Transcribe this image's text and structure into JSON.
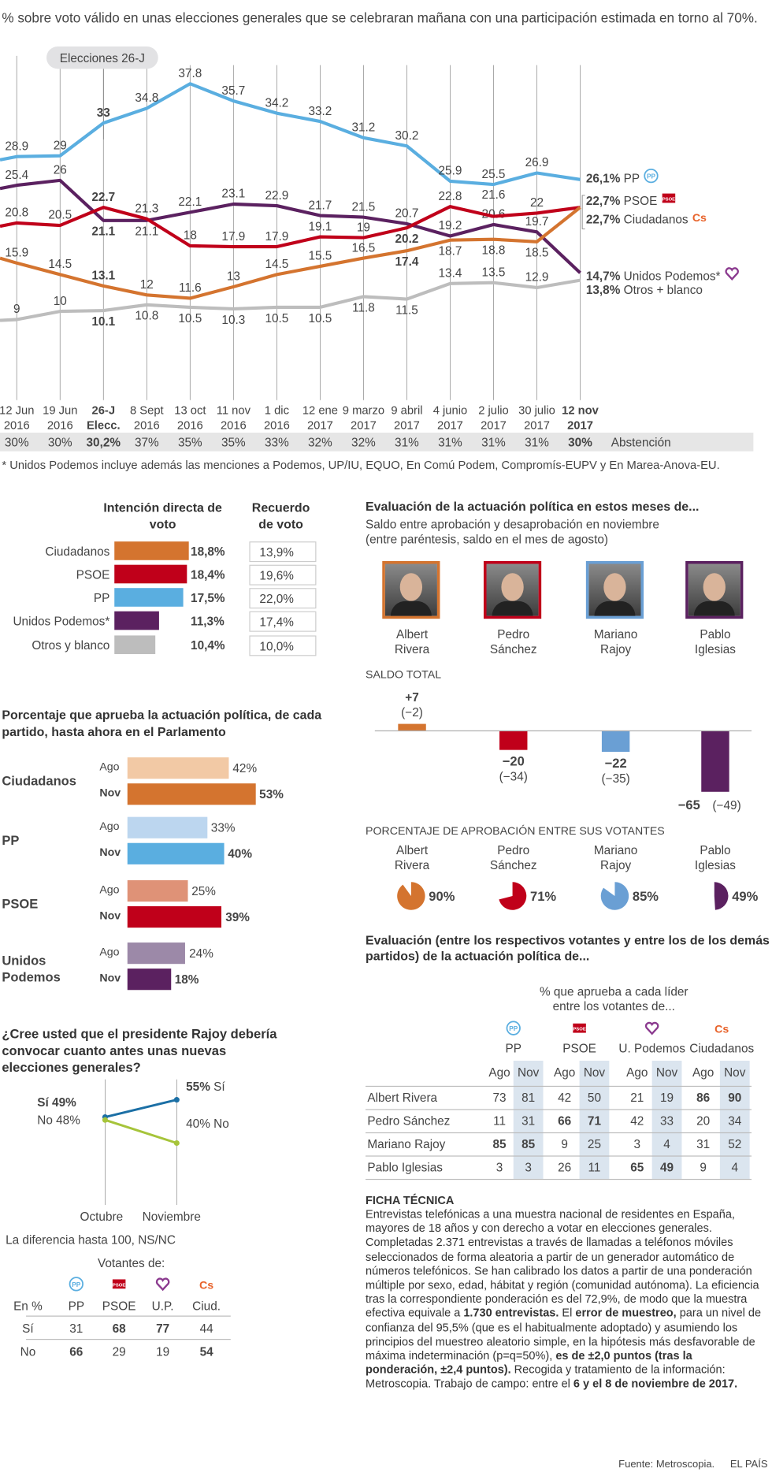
{
  "header": {
    "subtitle": "% sobre voto válido en unas elecciones generales que se celebraran mañana con una participación estimada en torno al 70%."
  },
  "chart_data": [
    {
      "type": "line",
      "annotation": "Elecciones 26-J",
      "categories": [
        [
          "12 Jun",
          "2016"
        ],
        [
          "19 Jun",
          "2016"
        ],
        [
          "26-J",
          "Elecc."
        ],
        [
          "8 Sept",
          "2016"
        ],
        [
          "13 oct",
          "2016"
        ],
        [
          "11 nov",
          "2016"
        ],
        [
          "1 dic",
          "2016"
        ],
        [
          "12 ene",
          "2017"
        ],
        [
          "9 marzo",
          "2017"
        ],
        [
          "9 abril",
          "2017"
        ],
        [
          "4 junio",
          "2017"
        ],
        [
          "2 julio",
          "2017"
        ],
        [
          "30 julio",
          "2017"
        ],
        [
          "12 nov",
          "2017"
        ]
      ],
      "series": [
        {
          "name": "PP",
          "end_label": "26,1%",
          "color": "#5aaee0",
          "icon": "pp-logo-icon",
          "values": [
            28.9,
            29.0,
            33.0,
            34.8,
            37.8,
            35.7,
            34.2,
            33.2,
            31.2,
            30.2,
            25.9,
            25.5,
            26.9,
            26.1
          ]
        },
        {
          "name": "Unidos Podemos*",
          "end_label": "14,7%",
          "color": "#5b2160",
          "icon": "podemos-heart-icon",
          "values": [
            25.4,
            26.0,
            21.1,
            21.1,
            22.1,
            23.1,
            22.9,
            21.7,
            21.5,
            20.7,
            19.2,
            20.6,
            19.7,
            14.7
          ]
        },
        {
          "name": "PSOE",
          "end_label": "22,7%",
          "color": "#c0001a",
          "icon": "psoe-logo-icon",
          "values": [
            20.8,
            20.5,
            22.7,
            21.3,
            18.0,
            17.9,
            17.9,
            19.1,
            19.0,
            20.2,
            22.8,
            21.6,
            22.0,
            22.7
          ]
        },
        {
          "name": "Ciudadanos",
          "end_label": "22,7%",
          "color": "#d4742f",
          "icon": "cs-logo-icon",
          "values": [
            15.9,
            14.5,
            13.1,
            12.0,
            11.6,
            13,
            14.5,
            15.5,
            16.5,
            17.4,
            18.7,
            18.8,
            18.5,
            22.7
          ]
        },
        {
          "name": "Otros + blanco",
          "end_label": "13,8%",
          "color": "#bdbdbd",
          "values": [
            9.0,
            10.0,
            10.1,
            10.8,
            10.5,
            10.3,
            10.5,
            10.5,
            11.8,
            11.5,
            13.4,
            13.5,
            12.9,
            13.8
          ]
        }
      ],
      "abstention_label": "Abstención",
      "abstention": [
        "30%",
        "30%",
        "30,2%",
        "37%",
        "35%",
        "35%",
        "33%",
        "32%",
        "32%",
        "31%",
        "31%",
        "31%",
        "31%",
        "30%"
      ],
      "footnote": "* Unidos Podemos incluye además las menciones a Podemos, UP/IU, EQUO, En Comú Podem, Compromís-EUPV y En Marea-Anova-EU."
    }
  ],
  "intencion": {
    "header_direct": "Intención directa de voto",
    "header_recall": "Recuerdo de voto",
    "rows": [
      {
        "party": "Ciudadanos",
        "value": 18.8,
        "label": "18,8%",
        "recall": "13,9%",
        "color": "#d4742f"
      },
      {
        "party": "PSOE",
        "value": 18.4,
        "label": "18,4%",
        "recall": "19,6%",
        "color": "#c0001a"
      },
      {
        "party": "PP",
        "value": 17.5,
        "label": "17,5%",
        "recall": "22,0%",
        "color": "#5aaee0"
      },
      {
        "party": "Unidos Podemos*",
        "value": 11.3,
        "label": "11,3%",
        "recall": "17,4%",
        "color": "#5b2160"
      },
      {
        "party": "Otros y blanco",
        "value": 10.4,
        "label": "10,4%",
        "recall": "10,0%",
        "color": "#bdbdbd"
      }
    ]
  },
  "aprueba": {
    "title": "Porcentaje que aprueba la actuación política, de cada partido, hasta ahora en el Parlamento",
    "ago": "Ago",
    "nov": "Nov",
    "parties": [
      {
        "name": "Ciudadanos",
        "ago": 42,
        "nov": 53,
        "ago_label": "42%",
        "nov_label": "53%",
        "c1": "#f2c9a5",
        "c2": "#d4742f"
      },
      {
        "name": "PP",
        "ago": 33,
        "nov": 40,
        "ago_label": "33%",
        "nov_label": "40%",
        "c1": "#bcd6ef",
        "c2": "#5aaee0"
      },
      {
        "name": "PSOE",
        "ago": 25,
        "nov": 39,
        "ago_label": "25%",
        "nov_label": "39%",
        "c1": "#df9277",
        "c2": "#c0001a"
      },
      {
        "name": "Unidos Podemos",
        "ago": 24,
        "nov": 18,
        "ago_label": "24%",
        "nov_label": "18%",
        "c1": "#9c89a8",
        "c2": "#5b2160"
      }
    ]
  },
  "rajoy": {
    "title": "¿Cree usted que el presidente Rajoy debería convocar cuanto antes unas nuevas elecciones generales?",
    "si_label": "Sí",
    "no_label": "No",
    "si_oct": "49%",
    "no_oct": "48%",
    "si_nov": "55%",
    "no_nov": "40%",
    "si_values": [
      49,
      55
    ],
    "no_values": [
      48,
      40
    ],
    "oct": "Octubre",
    "nov": "Noviembre",
    "note": "La diferencia hasta 100, NS/NC",
    "votantes": "Votantes de:",
    "cols": [
      "En %",
      "PP",
      "PSOE",
      "U.P.",
      "Ciud."
    ],
    "rows": [
      [
        "Sí",
        "31",
        "68",
        "77",
        "44"
      ],
      [
        "No",
        "66",
        "29",
        "19",
        "54"
      ]
    ]
  },
  "evaluacion": {
    "title": "Evaluación de la actuación política en estos meses de...",
    "sub1": "Saldo entre aprobación y desaprobación en noviembre",
    "sub2": "(entre paréntesis, saldo en el mes de agosto)",
    "saldo_title": "SALDO TOTAL",
    "aprob_title": "PORCENTAJE DE APROBACIÓN ENTRE SUS VOTANTES",
    "leaders": [
      {
        "first": "Albert",
        "last": "Rivera",
        "color": "#d4742f",
        "saldo": 7,
        "saldo_label": "+7",
        "prev": "(−2)",
        "aprob": 90,
        "aprob_label": "90%"
      },
      {
        "first": "Pedro",
        "last": "Sánchez",
        "color": "#c0001a",
        "saldo": -20,
        "saldo_label": "−20",
        "prev": "(−34)",
        "aprob": 71,
        "aprob_label": "71%"
      },
      {
        "first": "Mariano",
        "last": "Rajoy",
        "color": "#6a9fd4",
        "saldo": -22,
        "saldo_label": "−22",
        "prev": "(−35)",
        "aprob": 85,
        "aprob_label": "85%"
      },
      {
        "first": "Pablo",
        "last": "Iglesias",
        "color": "#5b2160",
        "saldo": -65,
        "saldo_label": "−65",
        "prev": "(−49)",
        "aprob": 49,
        "aprob_label": "49%"
      }
    ]
  },
  "cruzada": {
    "title": "Evaluación (entre los respectivos votantes y entre los de los demás partidos) de la actuación política de...",
    "sub1": "% que aprueba a cada líder",
    "sub2": "entre los votantes de...",
    "parties": [
      "PP",
      "PSOE",
      "U. Podemos",
      "Ciudadanos"
    ],
    "ago": "Ago",
    "nov": "Nov",
    "rows": [
      {
        "name": "Albert Rivera",
        "v": [
          "73",
          "81",
          "42",
          "50",
          "21",
          "19",
          "86",
          "90"
        ]
      },
      {
        "name": "Pedro Sánchez",
        "v": [
          "11",
          "31",
          "66",
          "71",
          "42",
          "33",
          "20",
          "34"
        ]
      },
      {
        "name": "Mariano Rajoy",
        "v": [
          "85",
          "85",
          "9",
          "25",
          "3",
          "4",
          "31",
          "52"
        ]
      },
      {
        "name": "Pablo Iglesias",
        "v": [
          "3",
          "3",
          "26",
          "11",
          "65",
          "49",
          "9",
          "4"
        ]
      }
    ]
  },
  "ficha": {
    "title": "FICHA TÉCNICA",
    "text": [
      {
        "t": "Entrevistas telefónicas a una muestra nacional de residentes en España, mayores de 18 años y con derecho a votar en elecciones generales. Completadas 2.371 entrevistas a través de llamadas a teléfonos móviles seleccionados de forma aleatoria a partir de un generador automático de números telefónicos. Se han calibrado los datos a partir de una ponderación múltiple por sexo, edad, hábitat y región (comunidad autónoma). La eficiencia tras la correspondiente ponderación es del 72,9%, de modo que la muestra efectiva equivale a "
      },
      {
        "t": "1.730 entrevistas.",
        "b": true
      },
      {
        "t": " El "
      },
      {
        "t": "error de muestreo,",
        "b": true
      },
      {
        "t": " para un nivel de confianza del 95,5% (que es el habitualmente adoptado) y asumiendo los principios del muestreo aleatorio simple, en la hipótesis más desfavorable de máxima indeterminación (p=q=50%), "
      },
      {
        "t": "es de ±2,0 puntos (tras la ponderación, ±2,4 puntos).",
        "b": true
      },
      {
        "t": " Recogida y tratamiento de la información: Metroscopia. Trabajo de campo: entre el "
      },
      {
        "t": "6 y el 8 de noviembre de 2017.",
        "b": true
      }
    ]
  },
  "footer": {
    "source": "Fuente: Metroscopia.",
    "brand": "EL PAÍS"
  }
}
